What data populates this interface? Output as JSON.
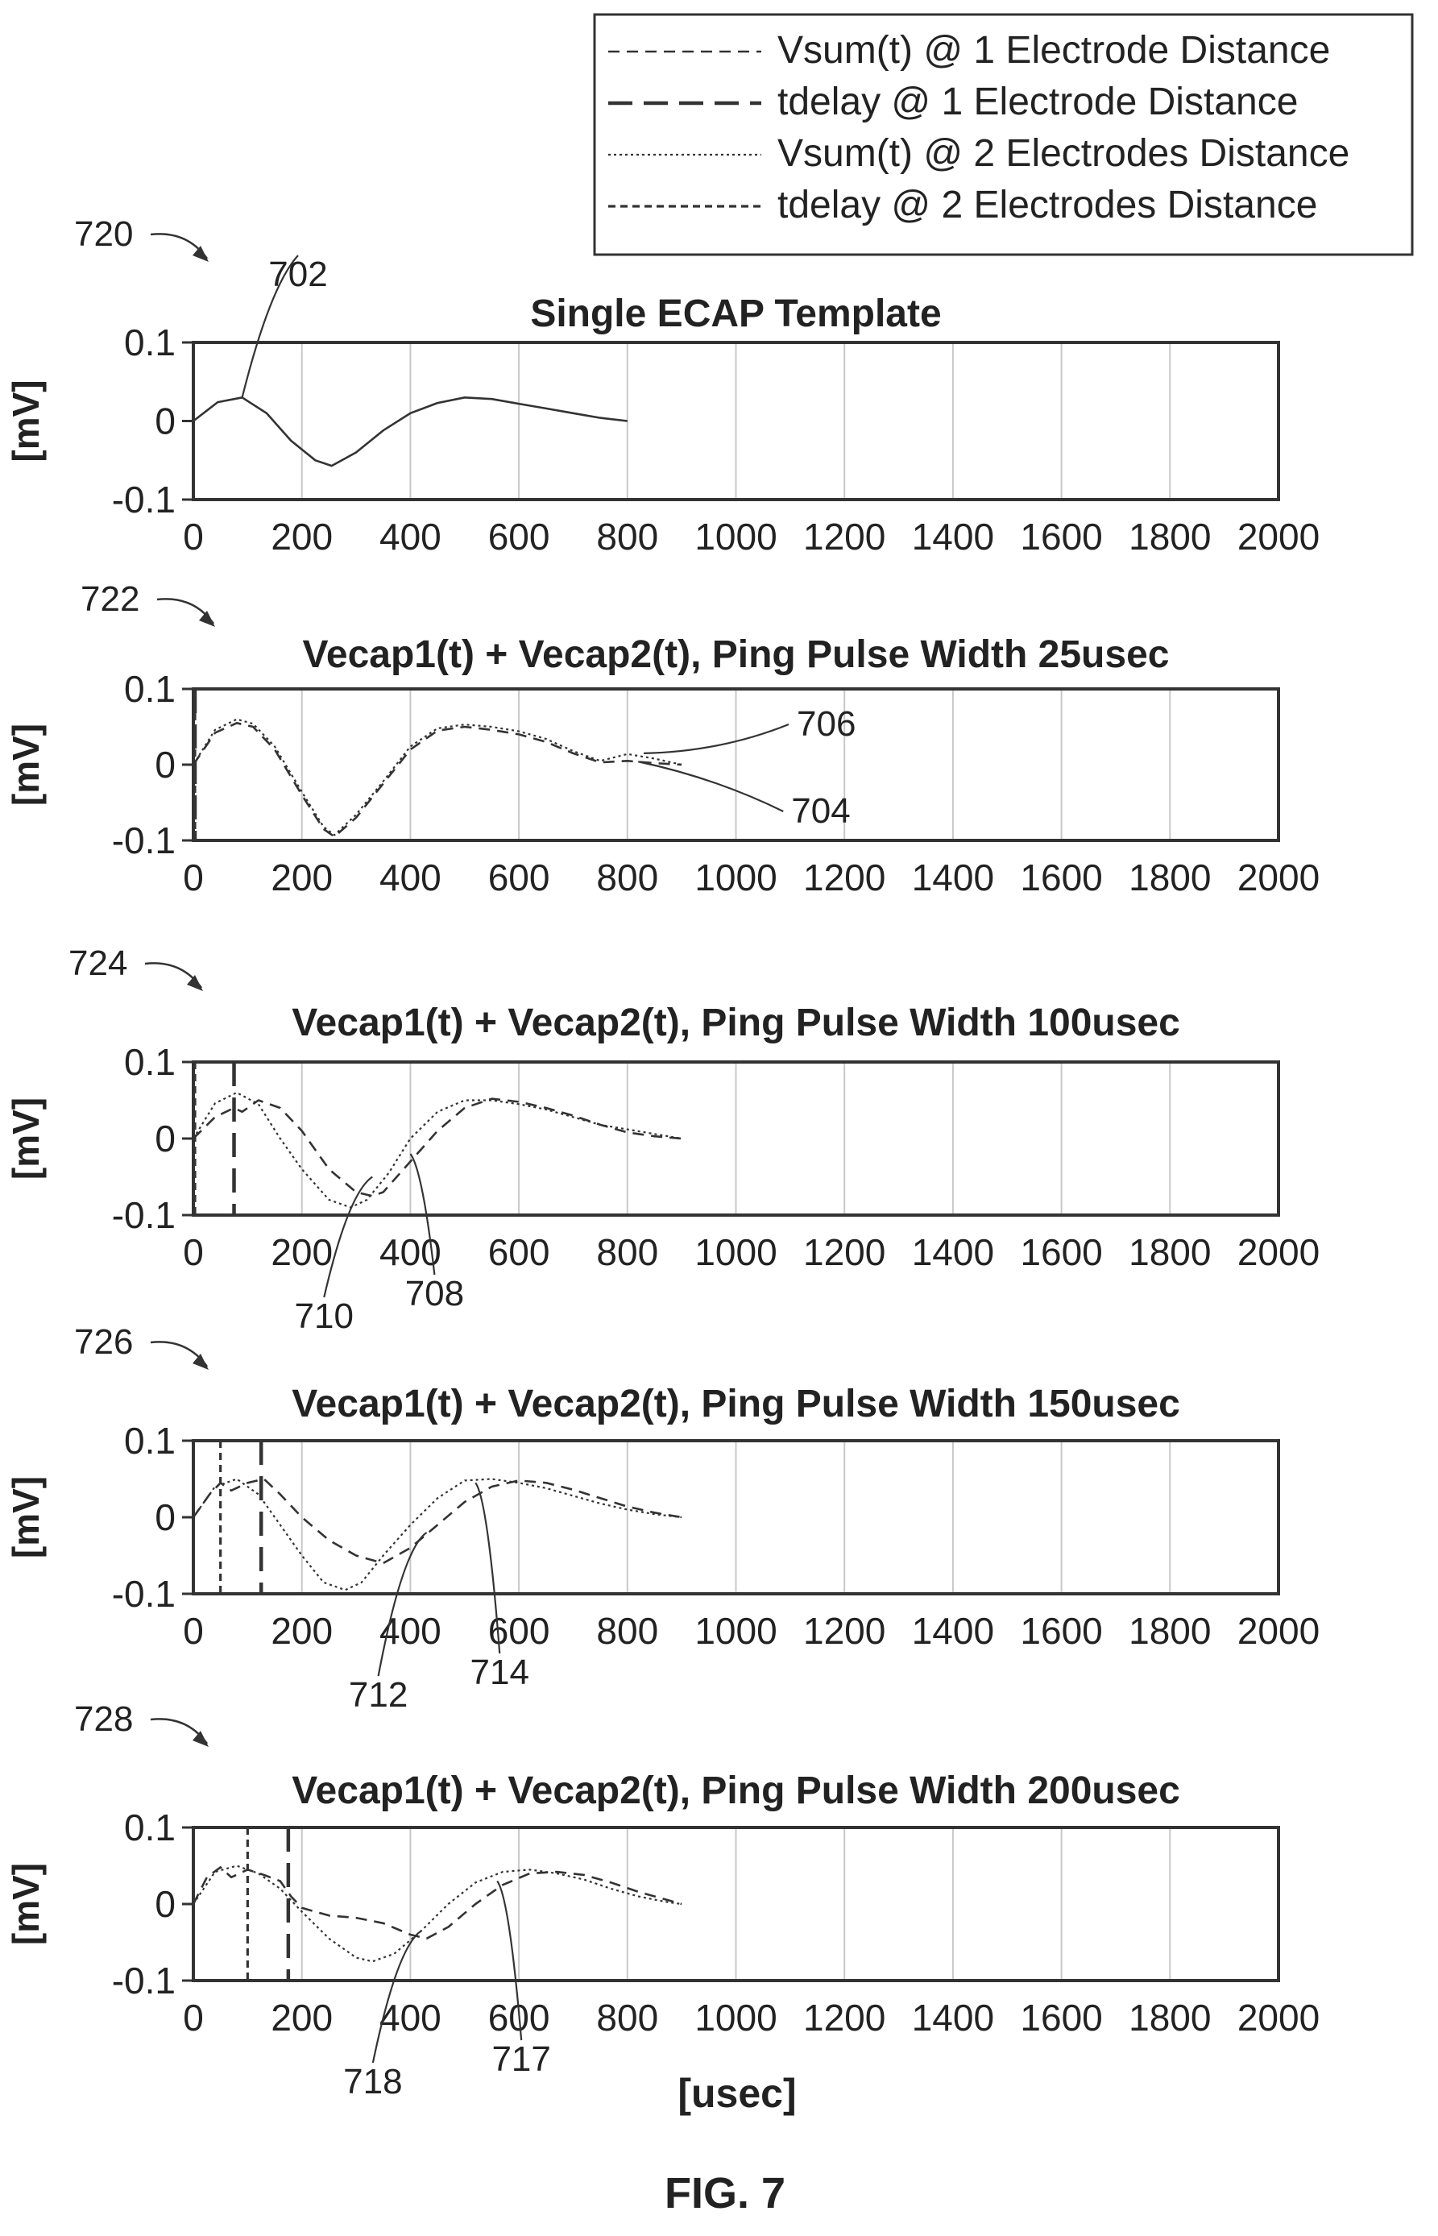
{
  "figure_label": "FIG. 7",
  "x_axis_label": "[usec]",
  "legend": [
    {
      "label": "Vsum(t) @ 1 Electrode Distance",
      "style": "dash-medium"
    },
    {
      "label": "tdelay @ 1 Electrode Distance",
      "style": "dash-long"
    },
    {
      "label": "Vsum(t) @ 2 Electrodes Distance",
      "style": "dot-fine"
    },
    {
      "label": "tdelay @ 2 Electrodes Distance",
      "style": "dash-short"
    }
  ],
  "chart_data": [
    {
      "type": "line",
      "ref": "720",
      "title": "Single ECAP Template",
      "ylabel": "[mV]",
      "xlim": [
        0,
        2000
      ],
      "ylim": [
        -0.1,
        0.1
      ],
      "xticks": [
        "0",
        "200",
        "400",
        "600",
        "800",
        "1000",
        "1200",
        "1400",
        "1600",
        "1800",
        "2000"
      ],
      "yticks": [
        "0.1",
        "0",
        "-0.1"
      ],
      "grid": "vertical",
      "callouts": [
        {
          "label": "702",
          "x": 90,
          "y": 0.03
        }
      ],
      "series": [
        {
          "style": "solid",
          "x": [
            0,
            45,
            90,
            135,
            180,
            225,
            255,
            300,
            350,
            400,
            450,
            500,
            550,
            600,
            650,
            700,
            750,
            800
          ],
          "y": [
            0.0,
            0.024,
            0.03,
            0.01,
            -0.025,
            -0.05,
            -0.057,
            -0.04,
            -0.012,
            0.01,
            0.023,
            0.03,
            0.028,
            0.022,
            0.016,
            0.01,
            0.004,
            0.0
          ]
        }
      ],
      "vlines": []
    },
    {
      "type": "line",
      "ref": "722",
      "title": "Vecap1(t) + Vecap2(t), Ping Pulse Width 25usec",
      "ylabel": "[mV]",
      "xlim": [
        0,
        2000
      ],
      "ylim": [
        -0.1,
        0.1
      ],
      "xticks": [
        "0",
        "200",
        "400",
        "600",
        "800",
        "1000",
        "1200",
        "1400",
        "1600",
        "1800",
        "2000"
      ],
      "yticks": [
        "0.1",
        "0",
        "-0.1"
      ],
      "grid": "vertical",
      "callouts": [
        {
          "label": "706",
          "x": 830,
          "y": 0.015
        },
        {
          "label": "704",
          "x": 820,
          "y": 0.004
        }
      ],
      "series": [
        {
          "style": "dash-medium",
          "x": [
            0,
            40,
            80,
            110,
            150,
            200,
            240,
            260,
            300,
            350,
            400,
            450,
            500,
            550,
            600,
            650,
            700,
            750,
            800,
            850,
            900
          ],
          "y": [
            0.0,
            0.042,
            0.055,
            0.05,
            0.02,
            -0.04,
            -0.085,
            -0.095,
            -0.07,
            -0.025,
            0.02,
            0.045,
            0.05,
            0.046,
            0.04,
            0.03,
            0.015,
            0.003,
            0.005,
            0.002,
            0.0
          ]
        },
        {
          "style": "dot-fine",
          "x": [
            0,
            40,
            80,
            110,
            150,
            200,
            240,
            260,
            300,
            350,
            400,
            450,
            500,
            550,
            600,
            650,
            700,
            750,
            800,
            850,
            900
          ],
          "y": [
            0.0,
            0.046,
            0.06,
            0.054,
            0.024,
            -0.036,
            -0.082,
            -0.093,
            -0.066,
            -0.022,
            0.024,
            0.048,
            0.053,
            0.05,
            0.044,
            0.034,
            0.018,
            0.005,
            0.014,
            0.008,
            0.0
          ]
        }
      ],
      "vlines": [
        {
          "x": 0,
          "style": "dash-long"
        },
        {
          "x": 0,
          "style": "dash-short"
        }
      ]
    },
    {
      "type": "line",
      "ref": "724",
      "title": "Vecap1(t) + Vecap2(t), Ping Pulse Width 100usec",
      "ylabel": "[mV]",
      "xlim": [
        0,
        2000
      ],
      "ylim": [
        -0.1,
        0.1
      ],
      "xticks": [
        "0",
        "200",
        "400",
        "600",
        "800",
        "1000",
        "1200",
        "1400",
        "1600",
        "1800",
        "2000"
      ],
      "yticks": [
        "0.1",
        "0",
        "-0.1"
      ],
      "grid": "vertical",
      "callouts": [
        {
          "label": "710",
          "x": 330,
          "y": -0.05
        },
        {
          "label": "708",
          "x": 400,
          "y": -0.02
        }
      ],
      "series": [
        {
          "style": "dash-medium",
          "x": [
            0,
            40,
            75,
            90,
            120,
            160,
            200,
            250,
            300,
            330,
            350,
            400,
            450,
            500,
            550,
            600,
            650,
            700,
            750,
            800,
            850,
            900
          ],
          "y": [
            0.0,
            0.028,
            0.04,
            0.035,
            0.05,
            0.04,
            0.01,
            -0.04,
            -0.07,
            -0.075,
            -0.07,
            -0.03,
            0.01,
            0.04,
            0.052,
            0.048,
            0.04,
            0.03,
            0.018,
            0.008,
            0.003,
            0.0
          ]
        },
        {
          "style": "dot-fine",
          "x": [
            0,
            40,
            80,
            120,
            160,
            200,
            250,
            290,
            320,
            360,
            400,
            450,
            500,
            550,
            600,
            650,
            700,
            750,
            800,
            850,
            900
          ],
          "y": [
            0.0,
            0.046,
            0.06,
            0.045,
            0.0,
            -0.04,
            -0.08,
            -0.09,
            -0.08,
            -0.045,
            0.0,
            0.035,
            0.05,
            0.05,
            0.045,
            0.038,
            0.028,
            0.018,
            0.012,
            0.006,
            0.0
          ]
        }
      ],
      "vlines": [
        {
          "x": 0,
          "style": "dash-short"
        },
        {
          "x": 75,
          "style": "dash-long"
        }
      ]
    },
    {
      "type": "line",
      "ref": "726",
      "title": "Vecap1(t) + Vecap2(t), Ping Pulse Width 150usec",
      "ylabel": "[mV]",
      "xlim": [
        0,
        2000
      ],
      "ylim": [
        -0.1,
        0.1
      ],
      "xticks": [
        "0",
        "200",
        "400",
        "600",
        "800",
        "1000",
        "1200",
        "1400",
        "1600",
        "1800",
        "2000"
      ],
      "yticks": [
        "0.1",
        "0",
        "-0.1"
      ],
      "grid": "vertical",
      "callouts": [
        {
          "label": "712",
          "x": 430,
          "y": -0.02
        },
        {
          "label": "714",
          "x": 520,
          "y": 0.045
        }
      ],
      "series": [
        {
          "style": "dash-medium",
          "x": [
            0,
            30,
            50,
            70,
            100,
            130,
            160,
            200,
            250,
            300,
            350,
            400,
            450,
            500,
            550,
            600,
            650,
            700,
            750,
            800,
            850,
            900
          ],
          "y": [
            0.0,
            0.03,
            0.045,
            0.035,
            0.045,
            0.05,
            0.03,
            0.0,
            -0.03,
            -0.05,
            -0.06,
            -0.04,
            -0.01,
            0.02,
            0.04,
            0.048,
            0.045,
            0.036,
            0.025,
            0.014,
            0.006,
            0.0
          ]
        },
        {
          "style": "dot-fine",
          "x": [
            0,
            40,
            80,
            120,
            160,
            200,
            240,
            280,
            310,
            350,
            400,
            450,
            500,
            550,
            600,
            650,
            700,
            750,
            800,
            850,
            900
          ],
          "y": [
            0.0,
            0.04,
            0.05,
            0.03,
            -0.01,
            -0.05,
            -0.085,
            -0.095,
            -0.085,
            -0.05,
            -0.01,
            0.025,
            0.048,
            0.05,
            0.045,
            0.038,
            0.028,
            0.018,
            0.01,
            0.004,
            0.0
          ]
        }
      ],
      "vlines": [
        {
          "x": 50,
          "style": "dash-short"
        },
        {
          "x": 125,
          "style": "dash-long"
        }
      ]
    },
    {
      "type": "line",
      "ref": "728",
      "title": "Vecap1(t) + Vecap2(t), Ping Pulse Width 200usec",
      "ylabel": "[mV]",
      "xlim": [
        0,
        2000
      ],
      "ylim": [
        -0.1,
        0.1
      ],
      "xticks": [
        "0",
        "200",
        "400",
        "600",
        "800",
        "1000",
        "1200",
        "1400",
        "1600",
        "1800",
        "2000"
      ],
      "yticks": [
        "0.1",
        "0",
        "-0.1"
      ],
      "grid": "vertical",
      "callouts": [
        {
          "label": "718",
          "x": 420,
          "y": -0.035
        },
        {
          "label": "717",
          "x": 560,
          "y": 0.03
        }
      ],
      "series": [
        {
          "style": "dash-medium",
          "x": [
            0,
            25,
            50,
            70,
            100,
            130,
            160,
            180,
            200,
            250,
            300,
            350,
            400,
            430,
            470,
            520,
            570,
            620,
            670,
            720,
            770,
            820,
            870,
            900
          ],
          "y": [
            0.0,
            0.035,
            0.048,
            0.035,
            0.045,
            0.038,
            0.03,
            0.01,
            -0.005,
            -0.015,
            -0.018,
            -0.025,
            -0.04,
            -0.045,
            -0.03,
            0.0,
            0.025,
            0.04,
            0.042,
            0.038,
            0.028,
            0.016,
            0.006,
            0.0
          ]
        },
        {
          "style": "dot-fine",
          "x": [
            0,
            40,
            80,
            120,
            160,
            200,
            250,
            300,
            330,
            370,
            420,
            470,
            520,
            570,
            620,
            670,
            720,
            770,
            820,
            870,
            900
          ],
          "y": [
            0.0,
            0.042,
            0.05,
            0.04,
            0.02,
            -0.01,
            -0.045,
            -0.07,
            -0.075,
            -0.065,
            -0.035,
            0.0,
            0.028,
            0.042,
            0.045,
            0.04,
            0.032,
            0.02,
            0.01,
            0.003,
            0.0
          ]
        }
      ],
      "vlines": [
        {
          "x": 100,
          "style": "dash-short"
        },
        {
          "x": 175,
          "style": "dash-long"
        }
      ]
    }
  ]
}
